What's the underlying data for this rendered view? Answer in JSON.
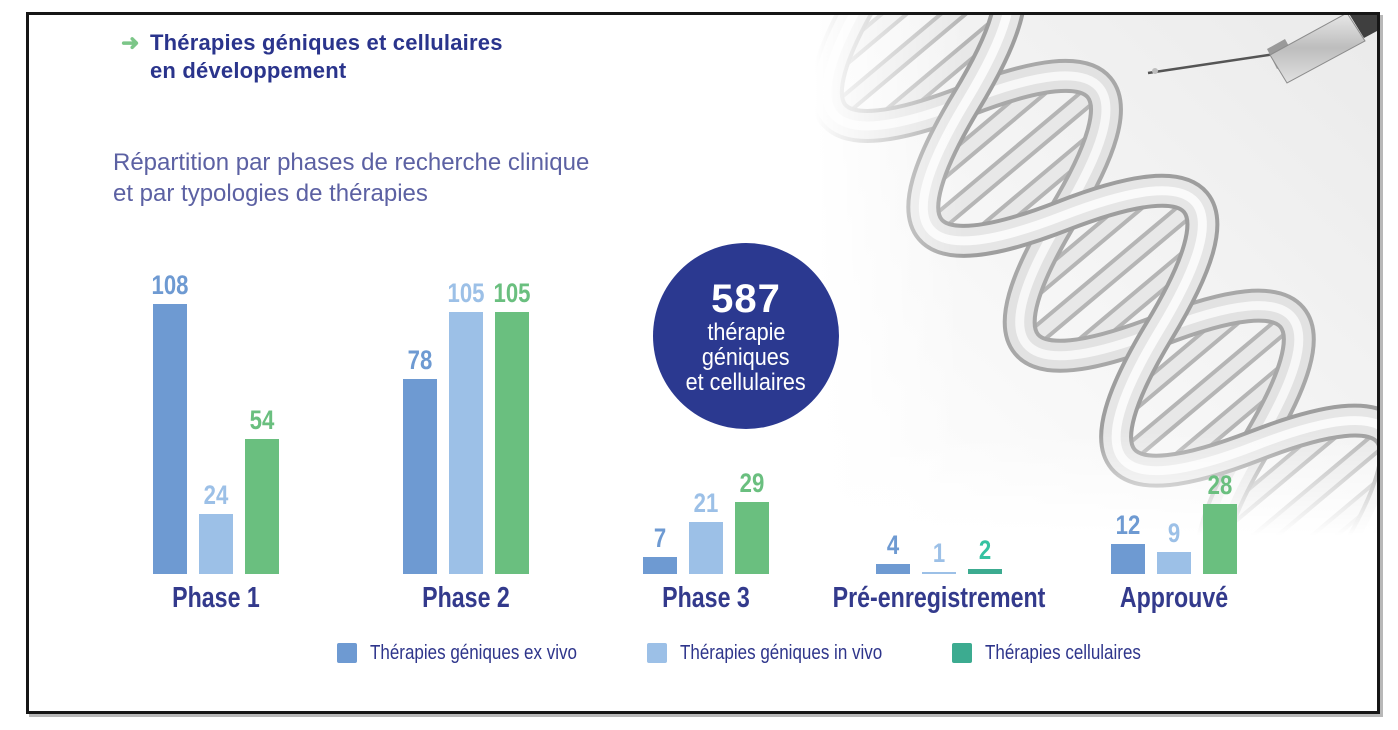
{
  "frame": {
    "border_color": "#161616",
    "background": "#ffffff"
  },
  "header": {
    "arrow_icon": "➜",
    "arrow_color": "#7cc688",
    "title_line1": "Thérapies géniques et cellulaires",
    "title_line2": "en développement",
    "title_color": "#2a348c"
  },
  "subtitle": {
    "line1": "Répartition par phases de recherche clinique",
    "line2": "et par typologies de thérapies",
    "color": "#5c61a3"
  },
  "total_badge": {
    "value": "587",
    "label_lines": [
      "thérapie",
      "géniques",
      "et cellulaires"
    ],
    "bg_color": "#2b3990",
    "text_color": "#ffffff"
  },
  "chart_data": {
    "type": "bar",
    "title": "Répartition par phases de recherche clinique et par typologies de thérapies",
    "categories": [
      "Phase 1",
      "Phase 2",
      "Phase 3",
      "Pré-enregistrement",
      "Approuvé"
    ],
    "series": [
      {
        "name": "Thérapies géniques ex vivo",
        "color": "#6e9ad2",
        "values": [
          108,
          78,
          7,
          4,
          12
        ]
      },
      {
        "name": "Thérapies géniques in vivo",
        "color": "#9cc0e7",
        "values": [
          24,
          105,
          21,
          1,
          9
        ]
      },
      {
        "name": "Thérapies cellulaires",
        "color": "#6abf7f",
        "legend_color": "#3cab90",
        "values": [
          54,
          105,
          29,
          2,
          28
        ]
      }
    ],
    "overrides": [
      {
        "group": 3,
        "series": 2,
        "color": "#3cab90",
        "label_color": "#35c2a1"
      }
    ],
    "value_labels": true,
    "category_label_color": "#333a8c",
    "axis": "none",
    "grid": false,
    "legend_position": "bottom",
    "ylim": [
      0,
      115
    ],
    "total": 587
  },
  "legend": {
    "text_color": "#2e358b"
  },
  "decor": {
    "dna_image": "dna-helix-with-syringe"
  }
}
